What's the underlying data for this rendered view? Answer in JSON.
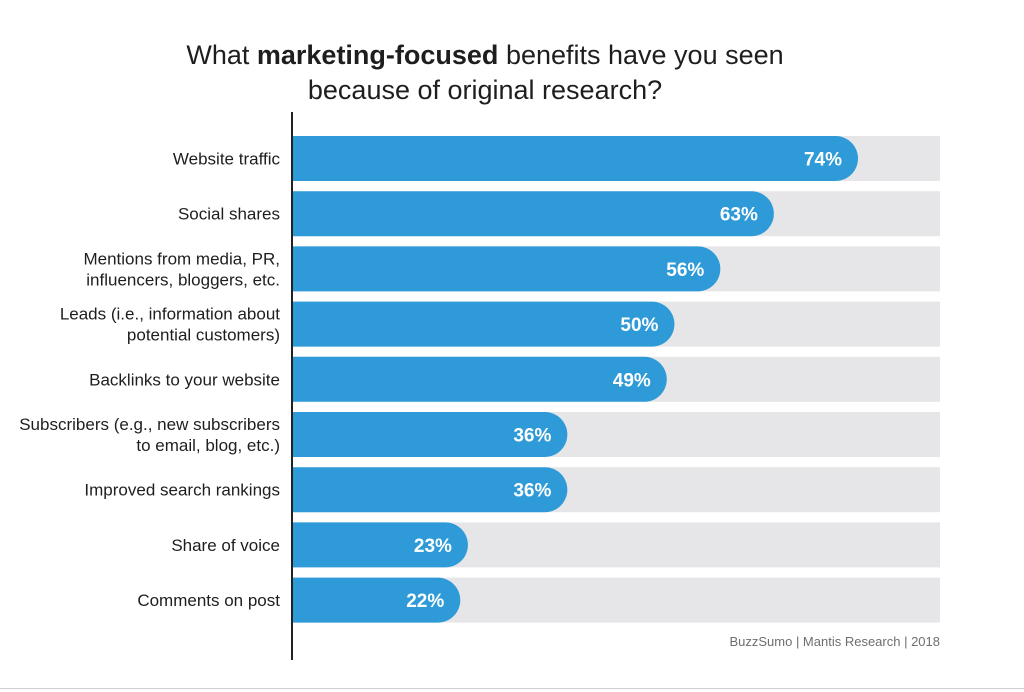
{
  "title": {
    "prefix": "What ",
    "emphasis": "marketing-focused",
    "line1_rest": " benefits have you seen",
    "line2": "because of original research?"
  },
  "source": "BuzzSumo | Mantis Research | 2018",
  "colors": {
    "bar": "#2e9ad8",
    "track": "#e6e6e8",
    "label_text": "#1e1e1e",
    "value_text": "#ffffff",
    "axis": "#222222"
  },
  "chart_data": {
    "type": "bar",
    "orientation": "horizontal",
    "title": "What marketing-focused benefits have you seen because of original research?",
    "categories": [
      [
        "Website traffic"
      ],
      [
        "Social shares"
      ],
      [
        "Mentions from media, PR,",
        "influencers, bloggers, etc."
      ],
      [
        "Leads (i.e., information about",
        "potential customers)"
      ],
      [
        "Backlinks to your website"
      ],
      [
        "Subscribers (e.g., new subscribers",
        "to email, blog, etc.)"
      ],
      [
        "Improved search rankings"
      ],
      [
        "Share of voice"
      ],
      [
        "Comments on post"
      ]
    ],
    "values": [
      74,
      63,
      56,
      50,
      49,
      36,
      36,
      23,
      22
    ],
    "value_labels": [
      "74%",
      "63%",
      "56%",
      "50%",
      "49%",
      "36%",
      "36%",
      "23%",
      "22%"
    ],
    "unit": "%",
    "xlim": [
      0,
      100
    ],
    "grid": false,
    "legend": "none"
  }
}
